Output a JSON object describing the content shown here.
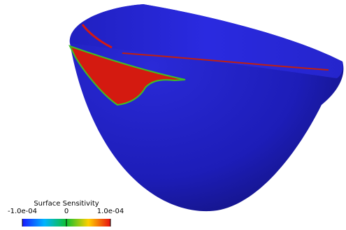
{
  "colorbar": {
    "title": "Surface Sensitivity",
    "ticks": [
      "-1.0e-04",
      "0",
      "1.0e-04"
    ]
  }
}
